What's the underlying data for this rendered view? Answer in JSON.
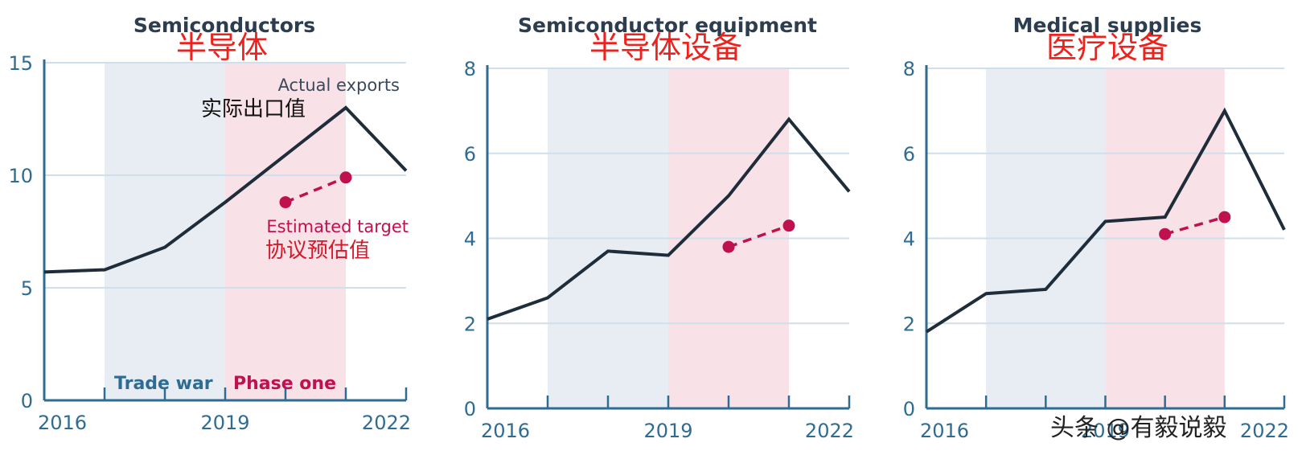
{
  "colors": {
    "actual_line": "#1f2d3a",
    "target_line": "#c0114f",
    "trade_war_band": "#e8edf3",
    "phase_one_band": "#f9e1e8",
    "grid": "#cfdfec",
    "axis": "#2f6c93",
    "trade_war_text": "#2f6c93",
    "phase_one_text": "#c0114f"
  },
  "annotations": {
    "actual_en": "Actual exports",
    "actual_cn": "实际出口值",
    "target_en": "Estimated target",
    "target_cn": "协议预估值",
    "trade_war": "Trade war",
    "phase_one": "Phase one"
  },
  "watermark": "头条 @有毅说毅",
  "chart_data": [
    {
      "type": "line",
      "title": "Semiconductors",
      "title_cn": "半导体",
      "ylim": [
        0,
        15
      ],
      "yticks": [
        0,
        5,
        10,
        15
      ],
      "xlim": [
        2016,
        2022
      ],
      "xticks": [
        2016,
        2017,
        2018,
        2019,
        2020,
        2021,
        2022
      ],
      "xticklabels": [
        "2016",
        "2019",
        "2022"
      ],
      "bands": [
        {
          "name": "Trade war",
          "from": 2017,
          "to": 2019
        },
        {
          "name": "Phase one",
          "from": 2019,
          "to": 2021
        }
      ],
      "series": [
        {
          "name": "Actual exports",
          "x": [
            2016,
            2017,
            2018,
            2019,
            2020,
            2021,
            2022
          ],
          "values": [
            5.7,
            5.8,
            6.8,
            8.8,
            10.9,
            13.0,
            10.2
          ]
        },
        {
          "name": "Estimated target",
          "x": [
            2020,
            2021
          ],
          "values": [
            8.8,
            9.9
          ]
        }
      ]
    },
    {
      "type": "line",
      "title": "Semiconductor equipment",
      "title_cn": "半导体设备",
      "ylim": [
        0,
        8
      ],
      "yticks": [
        0,
        2,
        4,
        6,
        8
      ],
      "xlim": [
        2016,
        2022
      ],
      "xticks": [
        2016,
        2017,
        2018,
        2019,
        2020,
        2021,
        2022
      ],
      "xticklabels": [
        "2016",
        "2019",
        "2022"
      ],
      "bands": [
        {
          "name": "Trade war",
          "from": 2017,
          "to": 2019
        },
        {
          "name": "Phase one",
          "from": 2019,
          "to": 2021
        }
      ],
      "series": [
        {
          "name": "Actual exports",
          "x": [
            2016,
            2017,
            2018,
            2019,
            2020,
            2021,
            2022
          ],
          "values": [
            2.1,
            2.6,
            3.7,
            3.6,
            5.0,
            6.8,
            5.1
          ]
        },
        {
          "name": "Estimated target",
          "x": [
            2020,
            2021
          ],
          "values": [
            3.8,
            4.3
          ]
        }
      ]
    },
    {
      "type": "line",
      "title": "Medical supplies",
      "title_cn": "医疗设备",
      "ylim": [
        0,
        8
      ],
      "yticks": [
        0,
        2,
        4,
        6,
        8
      ],
      "xlim": [
        2016,
        2022
      ],
      "xticks": [
        2016,
        2017,
        2018,
        2019,
        2020,
        2021,
        2022
      ],
      "xticklabels": [
        "2016",
        "2019",
        "2022"
      ],
      "bands": [
        {
          "name": "Trade war",
          "from": 2017,
          "to": 2019
        },
        {
          "name": "Phase one",
          "from": 2019,
          "to": 2021
        }
      ],
      "series": [
        {
          "name": "Actual exports",
          "x": [
            2016,
            2017,
            2018,
            2019,
            2020,
            2021,
            2022
          ],
          "values": [
            1.8,
            2.7,
            2.8,
            4.4,
            4.5,
            7.0,
            4.2
          ]
        },
        {
          "name": "Estimated target",
          "x": [
            2020,
            2021
          ],
          "values": [
            4.1,
            4.5
          ]
        }
      ]
    }
  ]
}
